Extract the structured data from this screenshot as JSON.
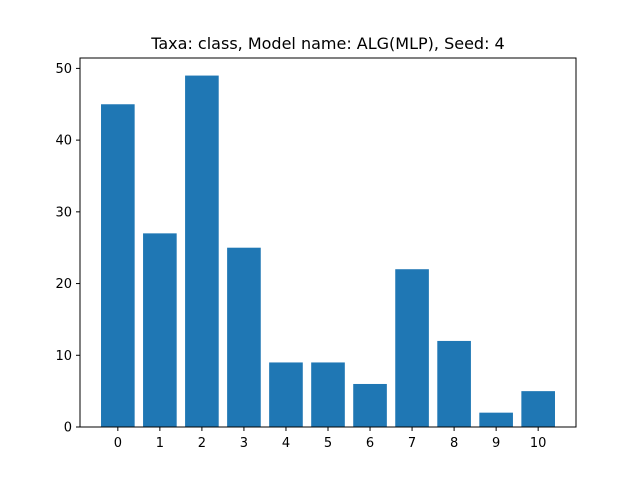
{
  "chart_data": {
    "type": "bar",
    "title": "Taxa: class, Model name: ALG(MLP), Seed: 4",
    "xlabel": "",
    "ylabel": "",
    "categories": [
      "0",
      "1",
      "2",
      "3",
      "4",
      "5",
      "6",
      "7",
      "8",
      "9",
      "10"
    ],
    "values": [
      45,
      27,
      49,
      25,
      9,
      9,
      6,
      22,
      12,
      2,
      5
    ],
    "ylim": [
      0,
      51.45
    ],
    "yticks": [
      0,
      10,
      20,
      30,
      40,
      50
    ],
    "grid": false,
    "legend": "none",
    "bar_color": "#1f77b4"
  }
}
